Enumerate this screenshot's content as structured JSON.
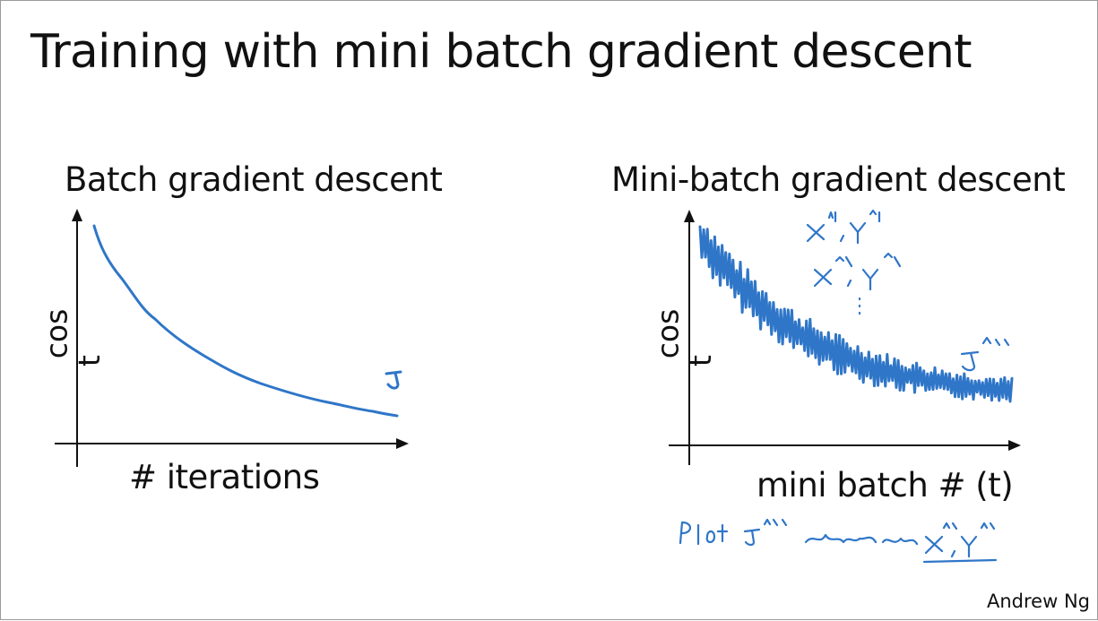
{
  "slide": {
    "title": "Training with mini batch gradient descent",
    "left_panel": {
      "heading": "Batch gradient descent",
      "y_label_part1": "cos",
      "y_label_part2": "t",
      "x_label": "# iterations",
      "curve_label": "J"
    },
    "right_panel": {
      "heading": "Mini-batch gradient descent",
      "y_label_part1": "cos",
      "y_label_part2": "t",
      "x_label": "mini batch # (t)",
      "curve_label": "J^{t}",
      "batch_notes": [
        "X^{1}, Y^{1}",
        "X^{2}, Y^{2}",
        "⋮"
      ],
      "plot_note": "Plot J^{t} computed using X^{t}, Y^{t}"
    },
    "credit": "Andrew Ng",
    "ink_color": "#2f76c8"
  }
}
